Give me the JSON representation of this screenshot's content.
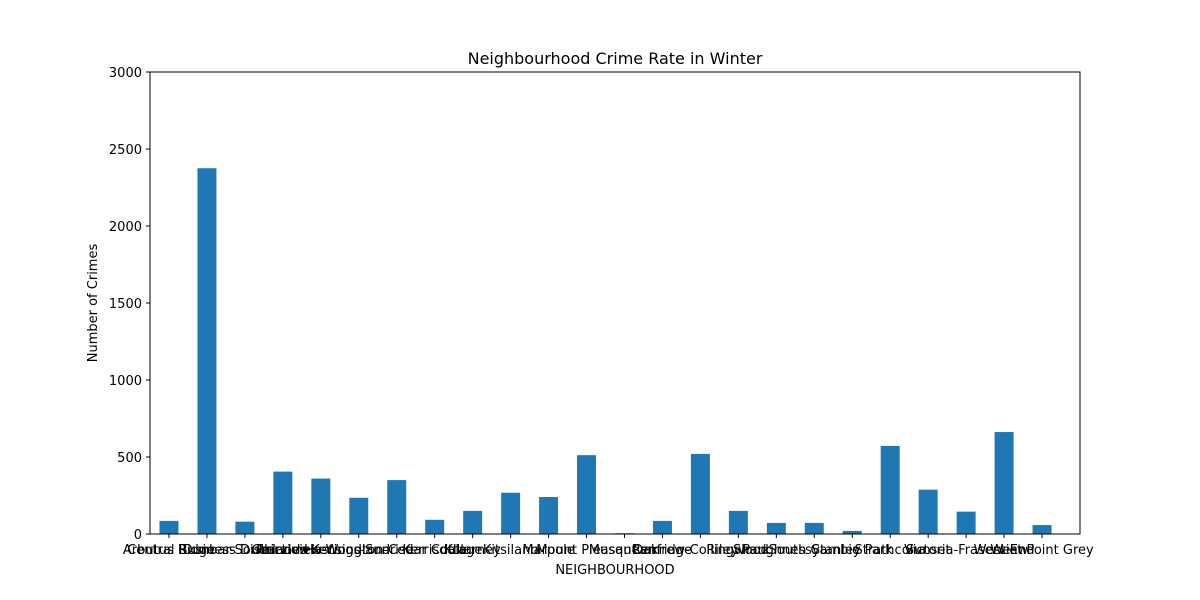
{
  "chart_data": {
    "type": "bar",
    "title": "Neighbourhood Crime Rate in Winter",
    "xlabel": "NEIGHBOURHOOD",
    "ylabel": "Number of Crimes",
    "ylim": [
      0,
      3000
    ],
    "yticks": [
      0,
      500,
      1000,
      1500,
      2000,
      2500,
      3000
    ],
    "grid": false,
    "bar_color": "#1f77b4",
    "categories": [
      "Arbutus Ridge",
      "Central Business District",
      "Dunbar-Southlands",
      "Fairview",
      "Grandview-Woodland",
      "Hastings-Sunrise",
      "Kensington-Cedar Cottage",
      "Kerrisdale",
      "Killarney",
      "Kitsilano",
      "Marpole",
      "Mount Pleasant",
      "Musqueam",
      "Oakridge",
      "Renfrew-Collingwood",
      "Riley Park",
      "Shaughnessy",
      "South Cambie",
      "Stanley Park",
      "Strathcona",
      "Sunset",
      "Victoria-Fraserview",
      "West End",
      "West Point Grey"
    ],
    "values": [
      85,
      2375,
      80,
      405,
      360,
      235,
      350,
      92,
      150,
      268,
      240,
      512,
      5,
      85,
      520,
      150,
      72,
      72,
      20,
      572,
      288,
      145,
      662,
      58
    ]
  }
}
